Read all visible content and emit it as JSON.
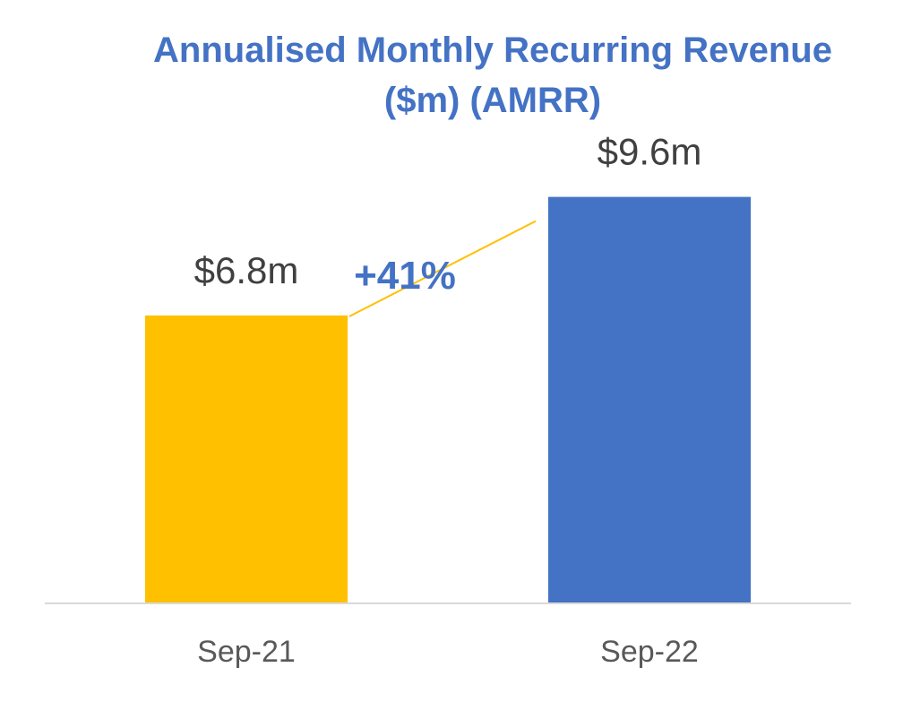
{
  "chart_data": {
    "type": "bar",
    "title_lines": [
      "Annualised Monthly Recurring Revenue",
      "($m) (AMRR)"
    ],
    "categories": [
      "Sep-21",
      "Sep-22"
    ],
    "values": [
      6.8,
      9.6
    ],
    "data_labels": [
      "$6.8m",
      "$9.6m"
    ],
    "bar_colors": [
      "#FFC000",
      "#4472C4"
    ],
    "ylim": [
      0,
      14.25
    ],
    "grid": false,
    "legend": "none",
    "annotation": {
      "text": "+41%",
      "color": "#4472C4",
      "connector_color": "#FFC000"
    },
    "axis_color": "#D9D9D9"
  }
}
